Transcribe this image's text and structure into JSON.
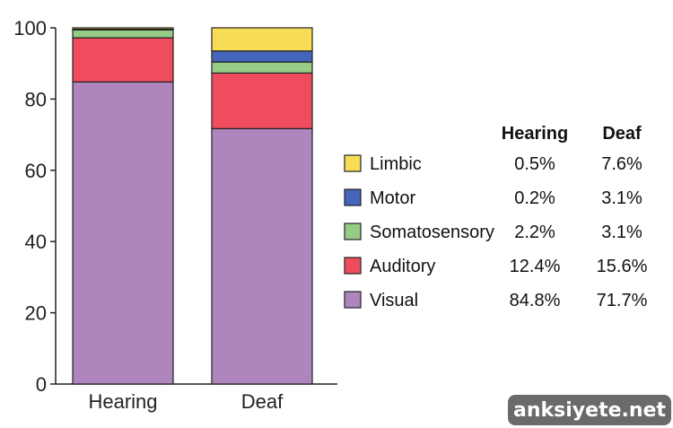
{
  "chart_data": {
    "type": "bar",
    "stacked": true,
    "categories": [
      "Hearing",
      "Deaf"
    ],
    "ylim": [
      0,
      100
    ],
    "yticks": [
      0,
      20,
      40,
      60,
      80,
      100
    ],
    "grid": false,
    "title": "",
    "xlabel": "",
    "ylabel": "",
    "legend_position": "right",
    "table_headers": [
      "Hearing",
      "Deaf"
    ],
    "series": [
      {
        "name": "Visual",
        "color": "#ae86bd",
        "values": [
          84.8,
          71.7
        ],
        "labels": [
          "84.8%",
          "71.7%"
        ]
      },
      {
        "name": "Auditory",
        "color": "#ef4c5e",
        "values": [
          12.4,
          15.6
        ],
        "labels": [
          "12.4%",
          "15.6%"
        ]
      },
      {
        "name": "Somatosensory",
        "color": "#96cc86",
        "values": [
          2.2,
          3.1
        ],
        "labels": [
          "2.2%",
          "3.1%"
        ]
      },
      {
        "name": "Motor",
        "color": "#4465b9",
        "values": [
          0.2,
          3.1
        ],
        "labels": [
          "0.2%",
          "3.1%"
        ]
      },
      {
        "name": "Limbic",
        "color": "#f7dc56",
        "values": [
          0.5,
          7.6
        ],
        "labels": [
          "0.5%",
          "7.6%"
        ]
      }
    ]
  },
  "watermark": "anksiyete.net"
}
